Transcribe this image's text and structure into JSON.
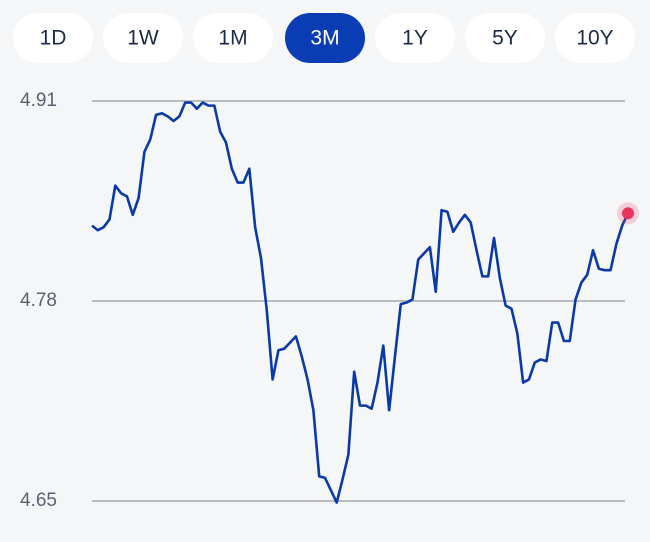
{
  "range_buttons": {
    "labels": [
      "1D",
      "1W",
      "1M",
      "3M",
      "1Y",
      "5Y",
      "10Y"
    ],
    "selected": 3
  },
  "chart_data": {
    "type": "line",
    "values": [
      4.829,
      4.826,
      4.828,
      4.833,
      4.855,
      4.85,
      4.848,
      4.836,
      4.847,
      4.877,
      4.885,
      4.901,
      4.902,
      4.9,
      4.897,
      4.9,
      4.909,
      4.909,
      4.905,
      4.909,
      4.907,
      4.907,
      4.89,
      4.883,
      4.866,
      4.857,
      4.857,
      4.866,
      4.828,
      4.808,
      4.774,
      4.729,
      4.748,
      4.749,
      4.753,
      4.757,
      4.744,
      4.729,
      4.709,
      4.666,
      4.665,
      4.657,
      4.649,
      4.664,
      4.68,
      4.734,
      4.712,
      4.712,
      4.71,
      4.727,
      4.751,
      4.709,
      4.744,
      4.778,
      4.779,
      4.781,
      4.807,
      4.811,
      4.815,
      4.786,
      4.839,
      4.838,
      4.825,
      4.831,
      4.836,
      4.831,
      4.813,
      4.796,
      4.796,
      4.821,
      4.795,
      4.777,
      4.775,
      4.759,
      4.727,
      4.729,
      4.74,
      4.742,
      4.741,
      4.766,
      4.766,
      4.754,
      4.754,
      4.781,
      4.792,
      4.797,
      4.813,
      4.801,
      4.8,
      4.8,
      4.817,
      4.829,
      4.837
    ],
    "color": "#0a3aa8",
    "marker_color": "#e8345f",
    "ylim": [
      4.65,
      4.91
    ],
    "yticks": [
      4.91,
      4.78,
      4.65
    ],
    "grid": true
  }
}
